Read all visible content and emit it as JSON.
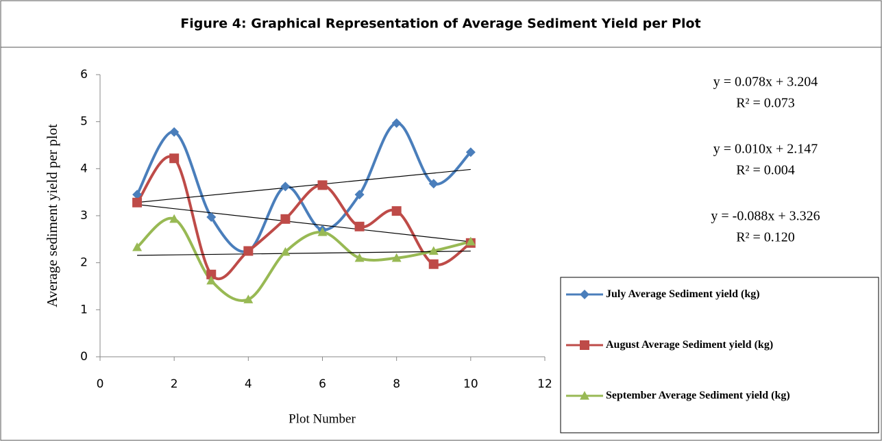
{
  "chart_data": {
    "type": "line",
    "title": "Figure 4: Graphical Representation of Average Sediment Yield per Plot",
    "x_label": "Plot Number",
    "y_label": "Average sediment  yield per plot",
    "x": [
      1,
      2,
      3,
      4,
      5,
      6,
      7,
      8,
      9,
      10
    ],
    "series": [
      {
        "name": "July Average Sediment yield (kg)",
        "color": "#4a7ebb",
        "marker": "diamond",
        "values": [
          3.45,
          4.78,
          2.97,
          2.25,
          3.62,
          2.7,
          3.45,
          4.97,
          3.68,
          4.35
        ]
      },
      {
        "name": "August Average Sediment yield (kg)",
        "color": "#be4b48",
        "marker": "square",
        "values": [
          3.28,
          4.22,
          1.75,
          2.25,
          2.93,
          3.65,
          2.77,
          3.1,
          1.97,
          2.42
        ]
      },
      {
        "name": "September Average Sediment yield (kg)",
        "color": "#98b954",
        "marker": "triangle",
        "values": [
          2.33,
          2.93,
          1.62,
          1.22,
          2.23,
          2.65,
          2.1,
          2.1,
          2.25,
          2.45
        ]
      }
    ],
    "trendlines": [
      {
        "equation": "y = 0.078x + 3.204",
        "r2": "R² = 0.073",
        "slope": 0.078,
        "intercept": 3.204
      },
      {
        "equation": "y = 0.010x + 2.147",
        "r2": "R² = 0.004",
        "slope": 0.01,
        "intercept": 2.147
      },
      {
        "equation": "y = -0.088x + 3.326",
        "r2": "R² = 0.120",
        "slope": -0.088,
        "intercept": 3.326
      }
    ],
    "xlim": [
      0,
      12
    ],
    "xticks": [
      0,
      2,
      4,
      6,
      8,
      10,
      12
    ],
    "ylim": [
      0,
      6
    ],
    "yticks": [
      0,
      1,
      2,
      3,
      4,
      5,
      6
    ],
    "trendline_color": "#000000"
  }
}
